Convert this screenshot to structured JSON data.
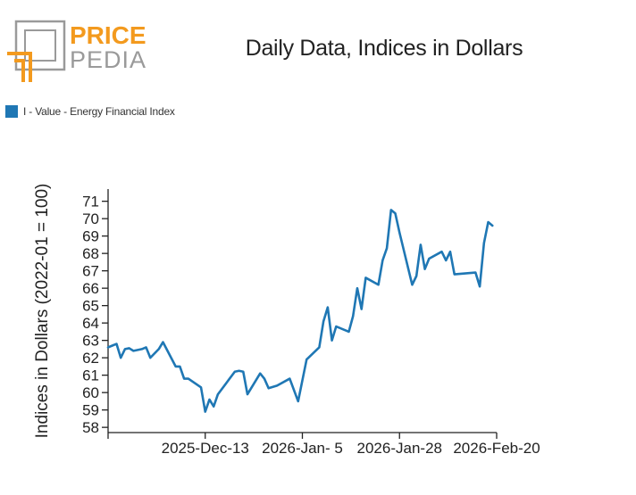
{
  "logo": {
    "text_top": "PRICE",
    "text_bottom": "PEDIA",
    "color_orange": "#f39a1e",
    "color_gray": "#9a9a9a"
  },
  "header": {
    "title": "Daily Data, Indices in Dollars"
  },
  "legend": {
    "label": "I - Value - Energy Financial Index",
    "color": "#1f77b4"
  },
  "chart_data": {
    "type": "line",
    "title": "Daily Data, Indices in Dollars",
    "ylabel": "Indices in Dollars (2022-01 = 100)",
    "xlabel": "",
    "ylim": [
      57.7,
      71.7
    ],
    "yticks": [
      58,
      59,
      60,
      61,
      62,
      63,
      64,
      65,
      66,
      67,
      68,
      69,
      70,
      71
    ],
    "xlim": [
      "2025-11-20",
      "2026-02-20"
    ],
    "xticks": [
      {
        "date": "2025-11-20",
        "label": ""
      },
      {
        "date": "2025-12-13",
        "label": "2025-Dec-13"
      },
      {
        "date": "2026-01-05",
        "label": "2026-Jan- 5"
      },
      {
        "date": "2026-01-28",
        "label": "2026-Jan-28"
      },
      {
        "date": "2026-02-20",
        "label": "2026-Feb-20"
      }
    ],
    "grid": false,
    "legend_position": "top-left",
    "series": [
      {
        "name": "I - Value - Energy Financial Index",
        "color": "#1f77b4",
        "points": [
          [
            "2025-11-20",
            62.6
          ],
          [
            "2025-11-21",
            62.7
          ],
          [
            "2025-11-22",
            62.8
          ],
          [
            "2025-11-23",
            62.0
          ],
          [
            "2025-11-24",
            62.5
          ],
          [
            "2025-11-25",
            62.55
          ],
          [
            "2025-11-26",
            62.4
          ],
          [
            "2025-11-28",
            62.5
          ],
          [
            "2025-11-29",
            62.6
          ],
          [
            "2025-11-30",
            62.0
          ],
          [
            "2025-12-02",
            62.5
          ],
          [
            "2025-12-03",
            62.9
          ],
          [
            "2025-12-06",
            61.5
          ],
          [
            "2025-12-07",
            61.5
          ],
          [
            "2025-12-08",
            60.8
          ],
          [
            "2025-12-09",
            60.8
          ],
          [
            "2025-12-12",
            60.3
          ],
          [
            "2025-12-13",
            58.9
          ],
          [
            "2025-12-14",
            59.6
          ],
          [
            "2025-12-15",
            59.2
          ],
          [
            "2025-12-16",
            59.9
          ],
          [
            "2025-12-20",
            61.2
          ],
          [
            "2025-12-21",
            61.25
          ],
          [
            "2025-12-22",
            61.2
          ],
          [
            "2025-12-23",
            59.9
          ],
          [
            "2025-12-26",
            61.1
          ],
          [
            "2025-12-27",
            60.8
          ],
          [
            "2025-12-28",
            60.25
          ],
          [
            "2025-12-30",
            60.4
          ],
          [
            "2026-01-02",
            60.8
          ],
          [
            "2026-01-04",
            59.5
          ],
          [
            "2026-01-06",
            61.9
          ],
          [
            "2026-01-09",
            62.6
          ],
          [
            "2026-01-10",
            64.1
          ],
          [
            "2026-01-11",
            64.9
          ],
          [
            "2026-01-12",
            63.0
          ],
          [
            "2026-01-13",
            63.8
          ],
          [
            "2026-01-16",
            63.5
          ],
          [
            "2026-01-17",
            64.4
          ],
          [
            "2026-01-18",
            66.0
          ],
          [
            "2026-01-19",
            64.8
          ],
          [
            "2026-01-20",
            66.6
          ],
          [
            "2026-01-23",
            66.2
          ],
          [
            "2026-01-24",
            67.6
          ],
          [
            "2026-01-25",
            68.3
          ],
          [
            "2026-01-26",
            70.5
          ],
          [
            "2026-01-27",
            70.3
          ],
          [
            "2026-01-28",
            69.2
          ],
          [
            "2026-01-31",
            66.2
          ],
          [
            "2026-02-01",
            66.7
          ],
          [
            "2026-02-02",
            68.5
          ],
          [
            "2026-02-03",
            67.1
          ],
          [
            "2026-02-04",
            67.7
          ],
          [
            "2026-02-07",
            68.1
          ],
          [
            "2026-02-08",
            67.6
          ],
          [
            "2026-02-09",
            68.1
          ],
          [
            "2026-02-10",
            66.8
          ],
          [
            "2026-02-15",
            66.9
          ],
          [
            "2026-02-16",
            66.1
          ],
          [
            "2026-02-17",
            68.6
          ],
          [
            "2026-02-18",
            69.8
          ],
          [
            "2026-02-19",
            69.6
          ]
        ]
      }
    ]
  }
}
